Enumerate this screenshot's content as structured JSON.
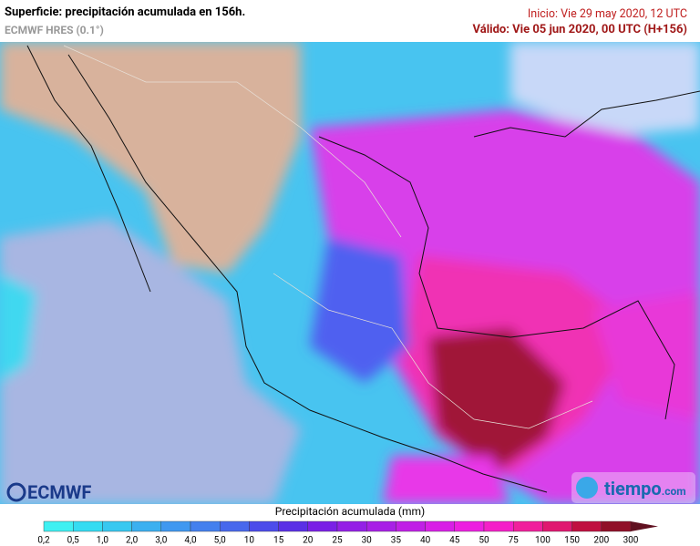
{
  "header": {
    "title": "Superficie: precipitación acumulada en 156h.",
    "model": "ECMWF HRES (0.1°)",
    "init": "Inicio: Vie 29 may 2020, 12 UTC",
    "valid": "Válido: Vie 05 jun 2020, 00 UTC (H+156)"
  },
  "logos": {
    "left": "ECMWF",
    "right": "tiempo",
    "right_suffix": ".com"
  },
  "legend": {
    "title": "Precipitación acumulada (mm)",
    "labels": [
      "0,2",
      "0,5",
      "1,0",
      "2,0",
      "3,0",
      "4,0",
      "5,0",
      "10",
      "15",
      "20",
      "25",
      "30",
      "35",
      "40",
      "45",
      "50",
      "75",
      "100",
      "150",
      "200",
      "300"
    ],
    "colors": [
      "#3ff0f2",
      "#35dcf2",
      "#38c8f0",
      "#3cb0f0",
      "#4098f0",
      "#4480ee",
      "#4868ec",
      "#4c4cea",
      "#5a30e6",
      "#7a20e6",
      "#9420e6",
      "#a820e6",
      "#c020e6",
      "#d820e6",
      "#ec20e0",
      "#f420c8",
      "#f0209c",
      "#e01870",
      "#c01040",
      "#901028"
    ],
    "over_color": "#601020"
  }
}
